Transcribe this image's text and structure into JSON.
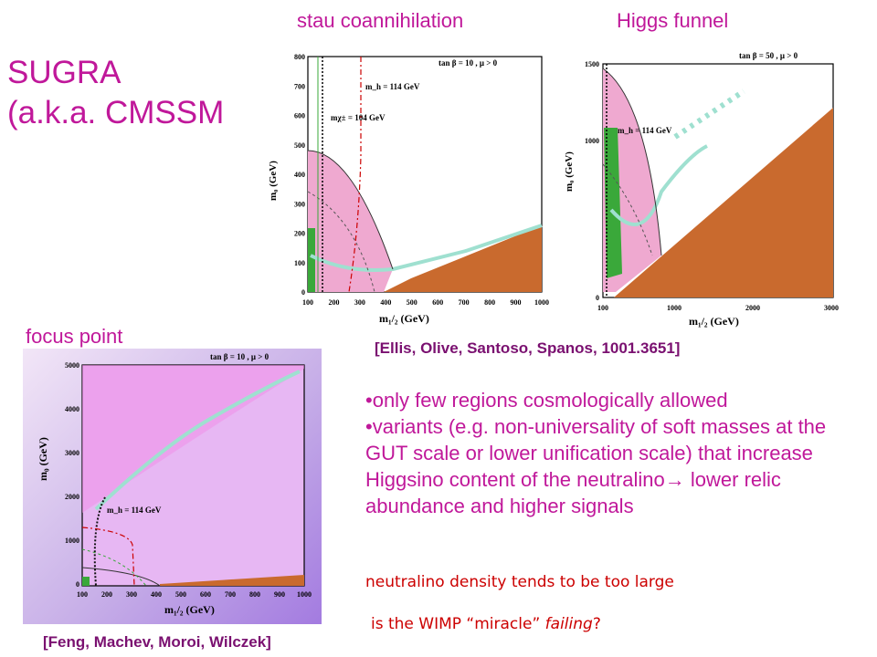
{
  "slide": {
    "title_line1": "SUGRA",
    "title_line2": "(a.k.a. CMSSM",
    "labels": {
      "stau": "stau coannihilation",
      "higgs": "Higgs funnel",
      "focus": "focus point"
    },
    "ref_top": "[Ellis, Olive, Santoso, Spanos, 1001.3651]",
    "ref_bottom": "[Feng, Machev, Moroi, Wilczek]",
    "bullets": [
      "•only few regions cosmologically allowed",
      "•variants (e.g. non-universality of soft masses at the GUT scale or lower unification scale) that increase Higgsino content of the neutralino→ lower relic abundance and higher signals"
    ],
    "note1": "neutralino density tends to be too large",
    "note2_prefix": "is the WIMP “miracle” ",
    "note2_em": "failing",
    "note2_suffix": "?"
  },
  "plot_stau": {
    "header": "tan β = 10 ,  μ > 0",
    "ylabel": "m₀ (GeV)",
    "xlabel": "m₁/₂ (GeV)",
    "mh": "m_h = 114 GeV",
    "mchi": "mχ± = 104 GeV",
    "xticks": [
      "100",
      "200",
      "300",
      "400",
      "500",
      "600",
      "700",
      "800",
      "900",
      "1000"
    ],
    "yticks": [
      "0",
      "100",
      "200",
      "300",
      "400",
      "500",
      "600",
      "700",
      "800"
    ]
  },
  "plot_higgs": {
    "header": "tan β = 50 ,  μ > 0",
    "ylabel": "m₀ (GeV)",
    "xlabel": "m₁/₂ (GeV)",
    "mh": "m_h = 114 GeV",
    "xticks": [
      "100",
      "1000",
      "2000",
      "3000"
    ],
    "yticks": [
      "0",
      "1000",
      "1500"
    ]
  },
  "plot_focus": {
    "header": "tan β = 10 ,  μ > 0",
    "ylabel": "m₀ (GeV)",
    "xlabel": "m₁/₂ (GeV)",
    "mh": "m_h = 114 GeV",
    "xticks": [
      "100",
      "200",
      "300",
      "400",
      "500",
      "600",
      "700",
      "800",
      "900",
      "1000"
    ],
    "yticks": [
      "0",
      "1000",
      "2000",
      "3000",
      "4000",
      "5000"
    ]
  },
  "colors": {
    "magenta": "#c0189a",
    "red": "#cc0000",
    "pink": "#efa9d0",
    "brown": "#c96a2e",
    "green": "#3aa83a",
    "teal": "#9fe0d0"
  }
}
